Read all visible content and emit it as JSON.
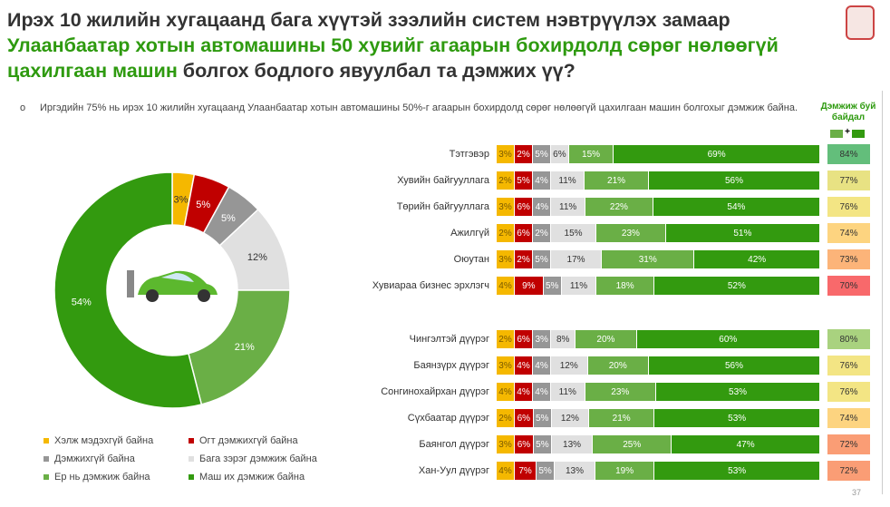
{
  "title": {
    "line1": "Ирэх 10 жилийн хугацаанд бага хүүтэй зээлийн систем нэвтрүүлэх замаар",
    "line2": "Улаанбаатар хотын автомашины 50 хувийг агаарын бохирдолд сөрөг нөлөөгүй",
    "line3a": "цахилгаан машин",
    "line3b": "болгох бодлого явуулбал та дэмжих үү?"
  },
  "bullet": "Иргэдийн 75% нь ирэх 10 жилийн хугацаанд Улаанбаатар хотын автомашины 50%-г агаарын бохирдолд сөрөг нөлөөгүй цахилгаан машин болгохыг дэмжиж байна.",
  "support_header": "Дэмжиж буй байдал",
  "plus": "+",
  "page_number": "37",
  "colors": [
    "#f5b800",
    "#c00000",
    "#969696",
    "#e0e0e0",
    "#6aaf46",
    "#339a0f"
  ],
  "chart_data": {
    "donut": {
      "type": "pie",
      "values": [
        3,
        5,
        5,
        12,
        21,
        54
      ],
      "labels": [
        "3%",
        "5%",
        "5%",
        "12%",
        "21%",
        "54%"
      ]
    },
    "legend": [
      "Хэлж мэдэхгүй байна",
      "Огт дэмжихгүй байна",
      "Дэмжихгүй байна",
      "Бага зэрэг дэмжиж байна",
      "Ер нь дэмжиж байна",
      "Маш их дэмжиж байна"
    ],
    "bars": {
      "type": "bar",
      "rows": [
        {
          "label": "Тэтгэвэр",
          "values": [
            3,
            2,
            5,
            6,
            15,
            69
          ],
          "support": "84%",
          "color": "#63be7b"
        },
        {
          "label": "Хувийн байгууллага",
          "values": [
            2,
            5,
            4,
            11,
            21,
            56
          ],
          "support": "77%",
          "color": "#e8e283"
        },
        {
          "label": "Төрийн байгууллага",
          "values": [
            3,
            6,
            4,
            11,
            22,
            54
          ],
          "support": "76%",
          "color": "#f3e584"
        },
        {
          "label": "Ажилгүй",
          "values": [
            2,
            6,
            2,
            15,
            23,
            51
          ],
          "support": "74%",
          "color": "#fdd480"
        },
        {
          "label": "Оюутан",
          "values": [
            3,
            2,
            5,
            17,
            31,
            42
          ],
          "support": "73%",
          "color": "#fcb479"
        },
        {
          "label": "Хувиараа бизнес эрхлэгч",
          "values": [
            4,
            9,
            5,
            11,
            18,
            52
          ],
          "support": "70%",
          "color": "#f8696b"
        },
        {
          "label": "Чингэлтэй дүүрэг",
          "values": [
            2,
            6,
            3,
            8,
            20,
            60
          ],
          "support": "80%",
          "color": "#a9d27f"
        },
        {
          "label": "Баянзүрх дүүрэг",
          "values": [
            3,
            4,
            4,
            12,
            20,
            56
          ],
          "support": "76%",
          "color": "#f3e584"
        },
        {
          "label": "Сонгинохайрхан дүүрэг",
          "values": [
            4,
            4,
            4,
            11,
            23,
            53
          ],
          "support": "76%",
          "color": "#f3e584"
        },
        {
          "label": "Сүхбаатар дүүрэг",
          "values": [
            2,
            6,
            5,
            12,
            21,
            53
          ],
          "support": "74%",
          "color": "#fdd480"
        },
        {
          "label": "Баянгол дүүрэг",
          "values": [
            3,
            6,
            5,
            13,
            25,
            47
          ],
          "support": "72%",
          "color": "#fa9d75"
        },
        {
          "label": "Хан-Уул дүүрэг",
          "values": [
            4,
            7,
            5,
            13,
            19,
            53
          ],
          "support": "72%",
          "color": "#fa9d75"
        }
      ]
    }
  }
}
